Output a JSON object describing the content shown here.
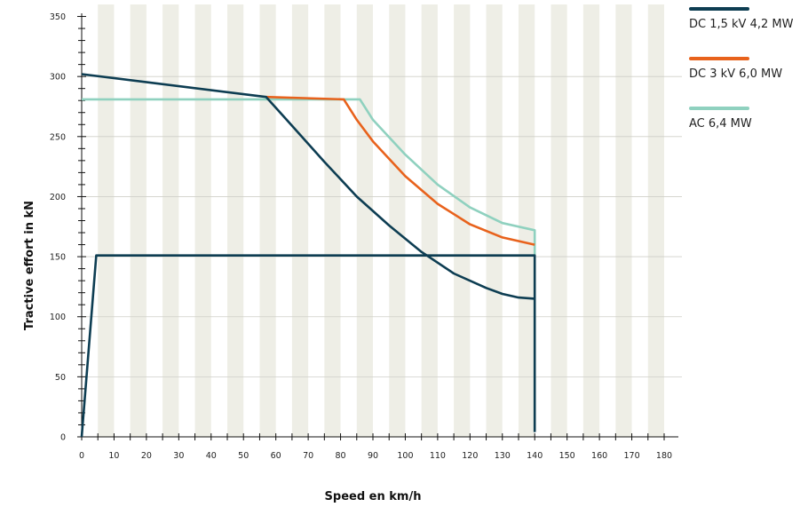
{
  "chart_data": {
    "type": "line",
    "xlabel": "Speed en km/h",
    "ylabel": "Tractive effort in kN",
    "xlim": [
      0,
      180
    ],
    "ylim": [
      0,
      360
    ],
    "x_ticks": [
      "0",
      "10",
      "20",
      "30",
      "40",
      "50",
      "60",
      "70",
      "80",
      "90",
      "100",
      "110",
      "120",
      "130",
      "140",
      "150",
      "160",
      "170",
      "180"
    ],
    "y_ticks": [
      "0",
      "50",
      "100",
      "150",
      "200",
      "250",
      "300",
      "350"
    ],
    "background": "alternating vertical bands every 5 km/h",
    "grid": "horizontal gridlines at each 50 kN",
    "legend_position": "top-right, outside plot",
    "series": [
      {
        "name": "DC 1,5 kV 4,2 MW",
        "color": "#0d3d52",
        "segments": [
          [
            [
              0,
              0
            ],
            [
              4.5,
              151
            ],
            [
              140,
              151
            ],
            [
              140,
              4
            ]
          ],
          [
            [
              0,
              302
            ],
            [
              57,
              283
            ],
            [
              65,
              259
            ],
            [
              75,
              229
            ],
            [
              85,
              200
            ],
            [
              95,
              176
            ],
            [
              105,
              154
            ],
            [
              115,
              136
            ],
            [
              125,
              124
            ],
            [
              130,
              119
            ],
            [
              135,
              116
            ],
            [
              140,
              115
            ]
          ]
        ]
      },
      {
        "name": "DC 3 kV 6,0 MW",
        "color": "#e8621c",
        "segments": [
          [
            [
              57,
              283
            ],
            [
              81,
              281
            ],
            [
              85,
              264
            ],
            [
              90,
              246
            ],
            [
              100,
              217
            ],
            [
              110,
              194
            ],
            [
              120,
              177
            ],
            [
              130,
              166
            ],
            [
              140,
              160
            ]
          ]
        ]
      },
      {
        "name": "AC 6,4 MW",
        "color": "#8fd1bf",
        "segments": [
          [
            [
              0,
              281
            ],
            [
              86,
              281
            ],
            [
              90,
              264
            ],
            [
              100,
              235
            ],
            [
              110,
              210
            ],
            [
              120,
              191
            ],
            [
              130,
              178
            ],
            [
              140,
              172
            ],
            [
              140,
              150
            ]
          ]
        ]
      }
    ]
  }
}
